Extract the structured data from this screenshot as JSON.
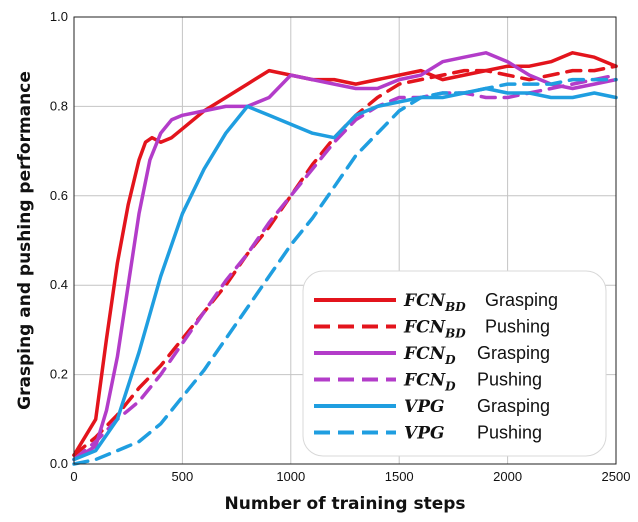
{
  "chart_data": {
    "type": "line",
    "xlabel": "Number of training steps",
    "ylabel": "Grasping and pushing performance",
    "xlim": [
      0,
      2500
    ],
    "ylim": [
      0,
      1.0
    ],
    "xticks": [
      "0",
      "500",
      "1000",
      "1500",
      "2000",
      "2500"
    ],
    "yticks": [
      "0.0",
      "0.2",
      "0.4",
      "0.6",
      "0.8",
      "1.0"
    ],
    "grid": true,
    "legend_position": "bottom-right",
    "series": [
      {
        "name_main": "FCN",
        "name_sub": "BD",
        "name_task": "Grasping",
        "color": "#e3141c",
        "dash": "solid",
        "x": [
          0,
          100,
          150,
          200,
          250,
          300,
          330,
          360,
          400,
          450,
          500,
          600,
          700,
          800,
          900,
          1000,
          1100,
          1200,
          1300,
          1400,
          1500,
          1600,
          1700,
          1800,
          1900,
          2000,
          2100,
          2200,
          2300,
          2400,
          2500
        ],
        "y": [
          0.02,
          0.1,
          0.28,
          0.45,
          0.58,
          0.68,
          0.72,
          0.73,
          0.72,
          0.73,
          0.75,
          0.79,
          0.82,
          0.85,
          0.88,
          0.87,
          0.86,
          0.86,
          0.85,
          0.86,
          0.87,
          0.88,
          0.86,
          0.87,
          0.88,
          0.89,
          0.89,
          0.9,
          0.92,
          0.91,
          0.89
        ]
      },
      {
        "name_main": "FCN",
        "name_sub": "BD",
        "name_task": "Pushing",
        "color": "#e3141c",
        "dash": "dashed",
        "x": [
          0,
          100,
          200,
          300,
          400,
          500,
          600,
          700,
          800,
          900,
          1000,
          1100,
          1200,
          1300,
          1400,
          1500,
          1600,
          1700,
          1800,
          1900,
          2000,
          2100,
          2200,
          2300,
          2400,
          2500
        ],
        "y": [
          0.02,
          0.06,
          0.11,
          0.17,
          0.22,
          0.28,
          0.34,
          0.4,
          0.47,
          0.53,
          0.6,
          0.67,
          0.73,
          0.78,
          0.82,
          0.85,
          0.86,
          0.87,
          0.88,
          0.88,
          0.87,
          0.86,
          0.87,
          0.88,
          0.88,
          0.89
        ]
      },
      {
        "name_main": "FCN",
        "name_sub": "D",
        "name_task": "Grasping",
        "color": "#b33cc9",
        "dash": "solid",
        "x": [
          0,
          100,
          150,
          200,
          250,
          300,
          350,
          400,
          450,
          500,
          600,
          700,
          800,
          900,
          1000,
          1100,
          1200,
          1300,
          1400,
          1500,
          1600,
          1700,
          1800,
          1900,
          2000,
          2100,
          2200,
          2300,
          2400,
          2500
        ],
        "y": [
          0.01,
          0.04,
          0.12,
          0.24,
          0.4,
          0.56,
          0.68,
          0.74,
          0.77,
          0.78,
          0.79,
          0.8,
          0.8,
          0.82,
          0.87,
          0.86,
          0.85,
          0.84,
          0.84,
          0.86,
          0.87,
          0.9,
          0.91,
          0.92,
          0.9,
          0.87,
          0.85,
          0.84,
          0.85,
          0.86
        ]
      },
      {
        "name_main": "FCN",
        "name_sub": "D",
        "name_task": "Pushing",
        "color": "#b33cc9",
        "dash": "dashed",
        "x": [
          0,
          100,
          200,
          300,
          400,
          500,
          600,
          700,
          800,
          900,
          1000,
          1100,
          1200,
          1300,
          1400,
          1500,
          1600,
          1700,
          1800,
          1900,
          2000,
          2100,
          2200,
          2300,
          2400,
          2500
        ],
        "y": [
          0.01,
          0.05,
          0.1,
          0.14,
          0.2,
          0.27,
          0.34,
          0.41,
          0.47,
          0.54,
          0.6,
          0.66,
          0.72,
          0.77,
          0.8,
          0.82,
          0.82,
          0.83,
          0.83,
          0.82,
          0.82,
          0.83,
          0.84,
          0.85,
          0.86,
          0.87
        ]
      },
      {
        "name_main": "VPG",
        "name_sub": "",
        "name_task": "Grasping",
        "color": "#1f9ee0",
        "dash": "solid",
        "x": [
          0,
          100,
          200,
          300,
          400,
          500,
          600,
          700,
          800,
          900,
          1000,
          1100,
          1200,
          1300,
          1400,
          1500,
          1600,
          1700,
          1800,
          1900,
          2000,
          2100,
          2200,
          2300,
          2400,
          2500
        ],
        "y": [
          0.01,
          0.03,
          0.1,
          0.25,
          0.42,
          0.56,
          0.66,
          0.74,
          0.8,
          0.78,
          0.76,
          0.74,
          0.73,
          0.78,
          0.8,
          0.81,
          0.82,
          0.82,
          0.83,
          0.84,
          0.83,
          0.83,
          0.82,
          0.82,
          0.83,
          0.82
        ]
      },
      {
        "name_main": "VPG",
        "name_sub": "",
        "name_task": "Pushing",
        "color": "#1f9ee0",
        "dash": "dashed",
        "x": [
          0,
          100,
          200,
          300,
          400,
          500,
          600,
          700,
          800,
          900,
          1000,
          1100,
          1200,
          1300,
          1400,
          1500,
          1600,
          1700,
          1800,
          1900,
          2000,
          2100,
          2200,
          2300,
          2400,
          2500
        ],
        "y": [
          0.0,
          0.01,
          0.03,
          0.05,
          0.09,
          0.15,
          0.21,
          0.28,
          0.35,
          0.42,
          0.49,
          0.55,
          0.62,
          0.69,
          0.74,
          0.79,
          0.82,
          0.83,
          0.83,
          0.84,
          0.85,
          0.85,
          0.85,
          0.86,
          0.86,
          0.86
        ]
      }
    ]
  }
}
